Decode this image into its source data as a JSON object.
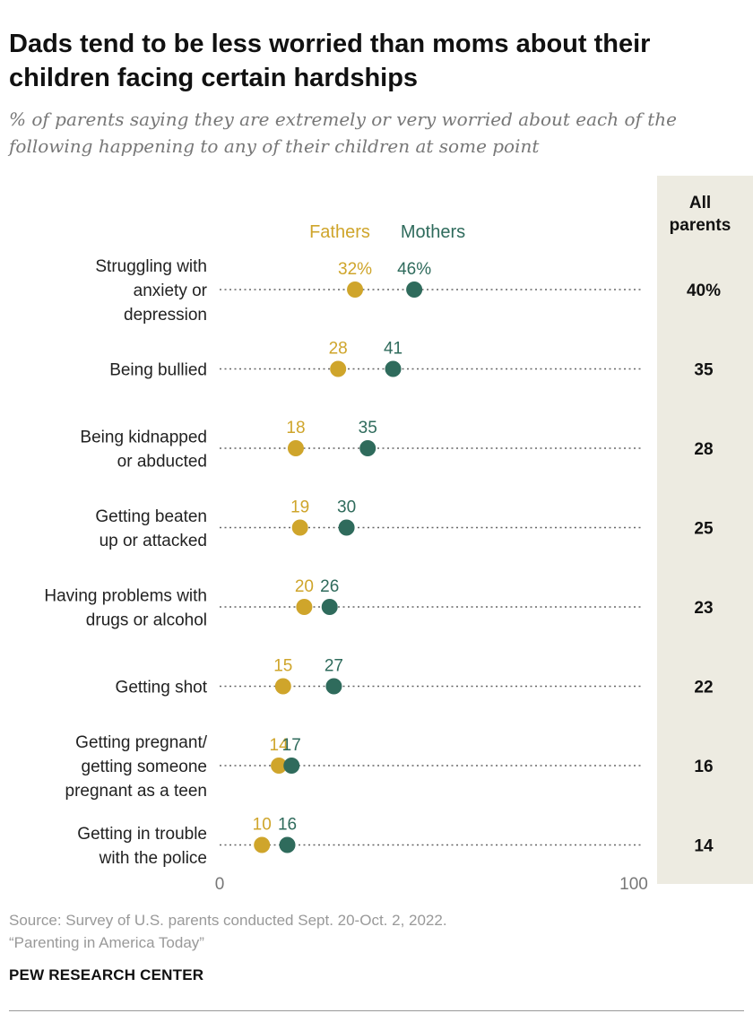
{
  "title": "Dads tend to be less worried than moms about their children facing certain hardships",
  "subtitle": "% of parents saying they are extremely or very worried about each of the following happening to any of their children at some point",
  "source_line1": "Source: Survey of U.S. parents conducted Sept. 20-Oct. 2, 2022.",
  "source_line2": "“Parenting in America Today”",
  "brand": "PEW RESEARCH CENTER",
  "colors": {
    "fathers": "#CFA52B",
    "mothers": "#2F6B5C",
    "all_parents_bg": "#EDEBE1"
  },
  "chart_data": {
    "type": "scatter",
    "xlim": [
      0,
      100
    ],
    "x_tick_labels": [
      "0",
      "100"
    ],
    "legend_placement": "top",
    "all_parents_header": [
      "All",
      "parents"
    ],
    "categories": [
      {
        "label": [
          "Struggling with",
          "anxiety or",
          "depression"
        ],
        "fathers": 32,
        "mothers": 46,
        "all": 40,
        "fathers_label": "32%",
        "mothers_label": "46%",
        "all_label": "40%"
      },
      {
        "label": [
          "Being bullied"
        ],
        "fathers": 28,
        "mothers": 41,
        "all": 35,
        "fathers_label": "28",
        "mothers_label": "41",
        "all_label": "35"
      },
      {
        "label": [
          "Being kidnapped",
          "or abducted"
        ],
        "fathers": 18,
        "mothers": 35,
        "all": 28,
        "fathers_label": "18",
        "mothers_label": "35",
        "all_label": "28"
      },
      {
        "label": [
          "Getting beaten",
          "up or attacked"
        ],
        "fathers": 19,
        "mothers": 30,
        "all": 25,
        "fathers_label": "19",
        "mothers_label": "30",
        "all_label": "25"
      },
      {
        "label": [
          "Having problems with",
          "drugs or alcohol"
        ],
        "fathers": 20,
        "mothers": 26,
        "all": 23,
        "fathers_label": "20",
        "mothers_label": "26",
        "all_label": "23"
      },
      {
        "label": [
          "Getting shot"
        ],
        "fathers": 15,
        "mothers": 27,
        "all": 22,
        "fathers_label": "15",
        "mothers_label": "27",
        "all_label": "22"
      },
      {
        "label": [
          "Getting pregnant/",
          "getting someone",
          "pregnant as a teen"
        ],
        "fathers": 14,
        "mothers": 17,
        "all": 16,
        "fathers_label": "14",
        "mothers_label": "17",
        "all_label": "16"
      },
      {
        "label": [
          "Getting in trouble",
          "with the police"
        ],
        "fathers": 10,
        "mothers": 16,
        "all": 14,
        "fathers_label": "10",
        "mothers_label": "16",
        "all_label": "14"
      }
    ],
    "series": [
      {
        "name": "Fathers",
        "key": "fathers"
      },
      {
        "name": "Mothers",
        "key": "mothers"
      }
    ]
  }
}
